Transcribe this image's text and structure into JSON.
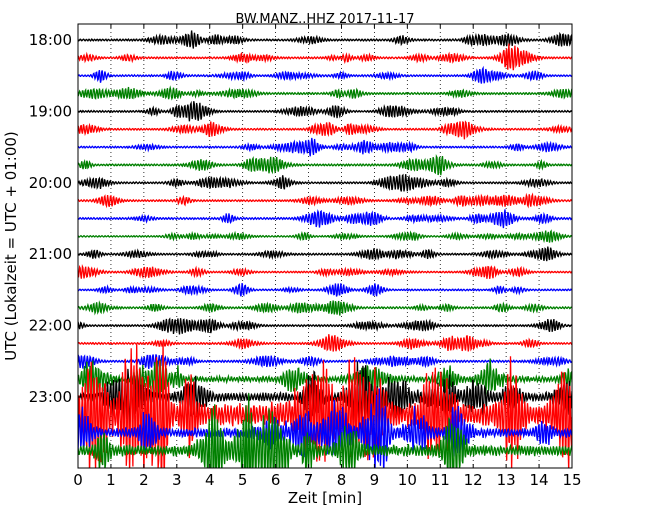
{
  "chart_data": {
    "type": "line",
    "title": "BW.MANZ..HHZ 2017-11-17",
    "xlabel": "Zeit  [min]",
    "ylabel": "UTC (Lokalzeit = UTC + 01:00)",
    "xlim": [
      0,
      15
    ],
    "xticks": [
      "0",
      "1",
      "2",
      "3",
      "4",
      "5",
      "6",
      "7",
      "8",
      "9",
      "10",
      "11",
      "12",
      "13",
      "14",
      "15"
    ],
    "ytick_labels": [
      "18:00",
      "19:00",
      "20:00",
      "21:00",
      "22:00",
      "23:00"
    ],
    "grid": "vertical dotted",
    "trace_interval_minutes": 15,
    "colors": [
      "#000000",
      "#ff0000",
      "#0000ff",
      "#008000"
    ],
    "series": [
      {
        "time": "18:00",
        "color": "#000000",
        "amplitude": 0.12
      },
      {
        "time": "18:15",
        "color": "#ff0000",
        "amplitude": 0.11
      },
      {
        "time": "18:30",
        "color": "#0000ff",
        "amplitude": 0.11
      },
      {
        "time": "18:45",
        "color": "#008000",
        "amplitude": 0.12
      },
      {
        "time": "19:00",
        "color": "#000000",
        "amplitude": 0.11
      },
      {
        "time": "19:15",
        "color": "#ff0000",
        "amplitude": 0.11
      },
      {
        "time": "19:30",
        "color": "#0000ff",
        "amplitude": 0.11
      },
      {
        "time": "19:45",
        "color": "#008000",
        "amplitude": 0.12
      },
      {
        "time": "20:00",
        "color": "#000000",
        "amplitude": 0.11
      },
      {
        "time": "20:15",
        "color": "#ff0000",
        "amplitude": 0.11
      },
      {
        "time": "20:30",
        "color": "#0000ff",
        "amplitude": 0.12
      },
      {
        "time": "20:45",
        "color": "#008000",
        "amplitude": 0.09
      },
      {
        "time": "21:00",
        "color": "#000000",
        "amplitude": 0.11
      },
      {
        "time": "21:15",
        "color": "#ff0000",
        "amplitude": 0.1
      },
      {
        "time": "21:30",
        "color": "#0000ff",
        "amplitude": 0.1
      },
      {
        "time": "21:45",
        "color": "#008000",
        "amplitude": 0.12
      },
      {
        "time": "22:00",
        "color": "#000000",
        "amplitude": 0.11
      },
      {
        "time": "22:15",
        "color": "#ff0000",
        "amplitude": 0.11
      },
      {
        "time": "22:30",
        "color": "#0000ff",
        "amplitude": 0.13
      },
      {
        "time": "22:45",
        "color": "#008000",
        "amplitude": 0.3
      },
      {
        "time": "23:00",
        "color": "#000000",
        "amplitude": 0.45
      },
      {
        "time": "23:15",
        "color": "#ff0000",
        "amplitude": 1.3
      },
      {
        "time": "23:30",
        "color": "#0000ff",
        "amplitude": 0.5
      },
      {
        "time": "23:45",
        "color": "#008000",
        "amplitude": 0.6
      }
    ]
  }
}
